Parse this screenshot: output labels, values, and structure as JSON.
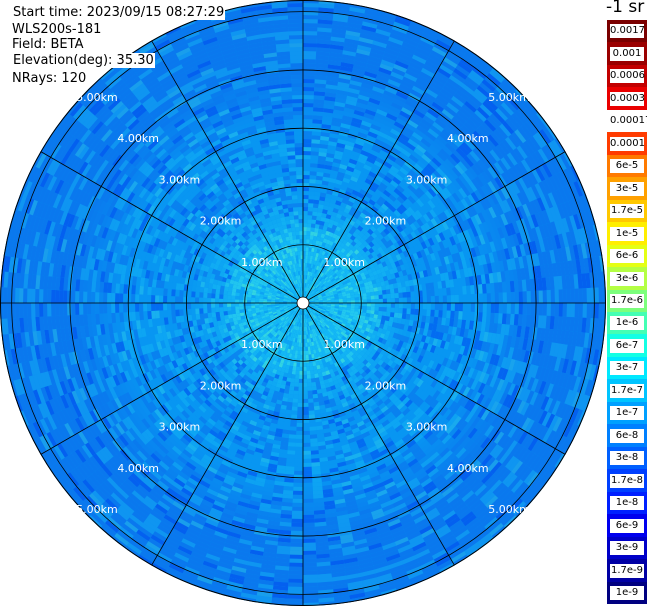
{
  "header": {
    "start_time": "Start time: 2023/09/15 08:27:29",
    "instrument": "WLS200s-181",
    "field": "Field: BETA",
    "elevation": "Elevation(deg): 35.30",
    "nrays": "NRays: 120"
  },
  "chart_data": {
    "type": "heatmap",
    "projection": "polar",
    "field": "BETA",
    "unit": "-1 sr",
    "range_rings": [
      "1.00km",
      "2.00km",
      "3.00km",
      "4.00km",
      "5.00km"
    ],
    "ring_labels": {
      "row_upper": [
        "5.00km",
        "4.00km",
        "3.00km",
        "2.00km",
        "1.00km"
      ],
      "row_lower": [
        "1.00km",
        "2.00km",
        "3.00km",
        "4.00km",
        "5.00km"
      ]
    },
    "ring_km": [
      1,
      2,
      3,
      4,
      5
    ],
    "max_range_km": 5.2,
    "radials_deg": [
      0,
      30,
      60,
      90,
      120,
      150,
      180,
      210,
      240,
      270,
      300,
      330
    ],
    "nrays": 120,
    "grid": true,
    "colorbar": {
      "placement": "right",
      "labels": [
        "0.0017",
        "0.001",
        "0.0006",
        "0.0003",
        "0.00017",
        "0.0001",
        "6e-5",
        "3e-5",
        "1.7e-5",
        "1e-5",
        "6e-6",
        "3e-6",
        "1.7e-6",
        "1e-6",
        "6e-7",
        "3e-7",
        "1.7e-7",
        "1e-7",
        "6e-8",
        "3e-8",
        "1.7e-8",
        "1e-8",
        "6e-9",
        "3e-9",
        "1.7e-9",
        "1e-9"
      ],
      "colors": [
        "#7a0000",
        "#9a0000",
        "#c20000",
        "#ea0000",
        "#ffffff",
        "#ff3c00",
        "#ff7a00",
        "#ffa000",
        "#ffc800",
        "#ffee00",
        "#e4ff14",
        "#b4ff44",
        "#7cff7c",
        "#44ffb4",
        "#14ffe4",
        "#00e8ff",
        "#00c4ff",
        "#00a0ff",
        "#0080ff",
        "#0060ff",
        "#0040ff",
        "#0020ff",
        "#0000ee",
        "#0000c8",
        "#0000a4",
        "#000080"
      ]
    },
    "field_levels": [
      {
        "range_km": 0.5,
        "typical": "1.7e-7"
      },
      {
        "range_km": 1.0,
        "typical": "1.7e-7"
      },
      {
        "range_km": 2.0,
        "typical": "1e-7"
      },
      {
        "range_km": 3.0,
        "typical": "1e-7"
      },
      {
        "range_km": 4.0,
        "typical": "6e-8"
      },
      {
        "range_km": 5.0,
        "typical": "6e-8"
      }
    ],
    "level_colors": {
      "3e-8": "#0050f0",
      "6e-8": "#0a78ee",
      "1e-7": "#0896f2",
      "1.7e-7": "#14b8f4",
      "3e-7": "#30d8ea",
      "6e-7": "#50f2d0"
    }
  }
}
